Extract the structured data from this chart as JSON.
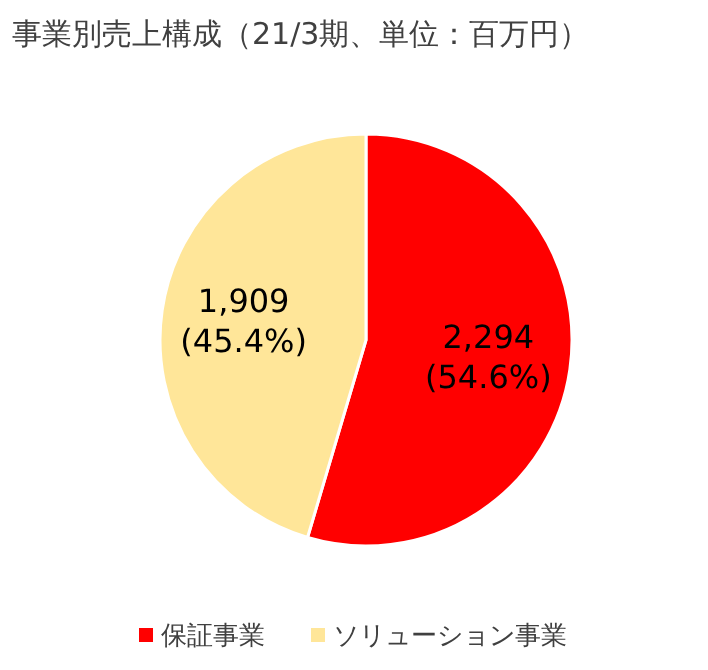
{
  "chart_data": {
    "type": "pie",
    "title": "事業別売上構成（21/3期、単位：百万円）",
    "categories": [
      "保証事業",
      "ソリューション事業"
    ],
    "values": [
      2294,
      1909
    ],
    "colors": [
      "#ff0000",
      "#ffe699"
    ],
    "value_labels": [
      "2,294\n(54.6%)",
      "1,909\n(45.4%)"
    ],
    "legend": "bottom"
  }
}
